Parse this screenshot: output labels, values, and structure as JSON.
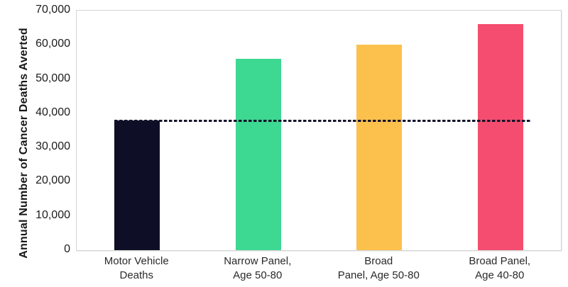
{
  "chart_data": {
    "type": "bar",
    "title": "",
    "xlabel": "",
    "ylabel": "Annual Number of Cancer Deaths Averted",
    "ylim": [
      0,
      70000
    ],
    "ytick_step": 10000,
    "ytick_labels": [
      "0",
      "10,000",
      "20,000",
      "30,000",
      "40,000",
      "50,000",
      "60,000",
      "70,000"
    ],
    "grid": false,
    "legend": false,
    "categories": [
      "Motor Vehicle\nDeaths",
      "Narrow Panel,\nAge 50-80",
      "Broad\nPanel, Age 50-80",
      "Broad Panel,\nAge 40-80"
    ],
    "values": [
      38000,
      56000,
      60000,
      66000
    ],
    "bar_colors": [
      "#0e0e26",
      "#3dd892",
      "#fcc14d",
      "#f54d70"
    ],
    "reference_line": {
      "value": 38000,
      "style": "dashed",
      "color": "#14142b",
      "note": "matches Motor Vehicle Deaths bar height"
    }
  },
  "colors": {
    "plot_border": "#d4d4d4",
    "axis_text": "#1c1c1c",
    "background": "#ffffff"
  }
}
